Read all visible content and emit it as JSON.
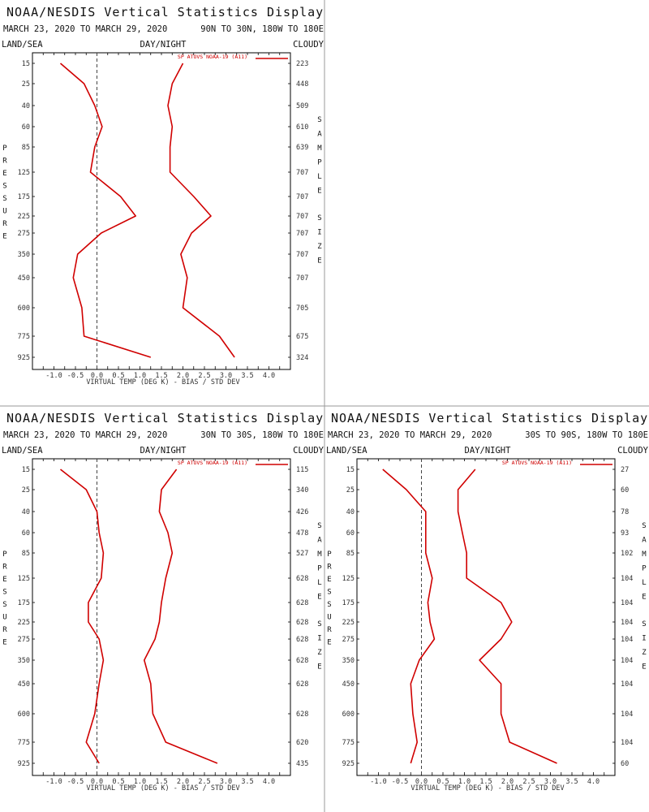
{
  "page": {
    "divider_color": "#999999"
  },
  "colors": {
    "series": "#d00000",
    "frame": "#000000",
    "zero_line": "#444444"
  },
  "chart_data": [
    {
      "type": "line",
      "title": "NOAA/NESDIS Vertical Statistics Display",
      "date_range": "MARCH 23, 2020 TO MARCH 29, 2020",
      "region": "90N TO 30N, 180W TO 180E",
      "land_sea": "LAND/SEA",
      "day_night": "DAY/NIGHT",
      "cloudy": "CLOUDY",
      "xlabel": "VIRTUAL TEMP (DEG K) - BIAS / STD DEV",
      "ylabel_left": "PRESSURE",
      "ylabel_right": "SAMPLE SIZE",
      "xlim": [
        -1.5,
        4.5
      ],
      "xticks": [
        "-1.0",
        "-0.5",
        "0.0",
        "0.5",
        "1.0",
        "1.5",
        "2.0",
        "2.5",
        "3.0",
        "3.5",
        "4.0"
      ],
      "pressure_levels": [
        15,
        25,
        40,
        60,
        85,
        125,
        175,
        225,
        275,
        350,
        450,
        600,
        775,
        925
      ],
      "sample_size": [
        223,
        448,
        509,
        610,
        639,
        707,
        707,
        707,
        707,
        707,
        707,
        705,
        675,
        324
      ],
      "series": [
        {
          "name": "SP ATOVS NOAA-19 (A11)",
          "kind": "bias",
          "values": [
            -0.85,
            -0.3,
            -0.05,
            0.12,
            -0.05,
            -0.15,
            0.55,
            0.9,
            0.1,
            -0.45,
            -0.55,
            -0.35,
            -0.3,
            1.25
          ]
        },
        {
          "name": "",
          "kind": "std_dev",
          "values": [
            2.0,
            1.75,
            1.65,
            1.75,
            1.7,
            1.7,
            2.25,
            2.65,
            2.2,
            1.95,
            2.1,
            2.0,
            2.85,
            3.2
          ]
        }
      ],
      "legend": "SP ATOVS NOAA-19 (A11)"
    },
    {
      "type": "line",
      "title": "NOAA/NESDIS Vertical Statistics Display",
      "date_range": "MARCH 23, 2020 TO MARCH 29, 2020",
      "region": "30N TO 30S, 180W TO 180E",
      "land_sea": "LAND/SEA",
      "day_night": "DAY/NIGHT",
      "cloudy": "CLOUDY",
      "xlabel": "VIRTUAL TEMP (DEG K) - BIAS / STD DEV",
      "ylabel_left": "PRESSURE",
      "ylabel_right": "SAMPLE SIZE",
      "xlim": [
        -1.5,
        4.5
      ],
      "xticks": [
        "-1.0",
        "-0.5",
        "0.0",
        "0.5",
        "1.0",
        "1.5",
        "2.0",
        "2.5",
        "3.0",
        "3.5",
        "4.0"
      ],
      "pressure_levels": [
        15,
        25,
        40,
        60,
        85,
        125,
        175,
        225,
        275,
        350,
        450,
        600,
        775,
        925
      ],
      "sample_size": [
        115,
        340,
        426,
        478,
        527,
        628,
        628,
        628,
        628,
        628,
        628,
        628,
        620,
        435
      ],
      "series": [
        {
          "name": "SP ATOVS NOAA-19 (A11)",
          "kind": "bias",
          "values": [
            -0.85,
            -0.25,
            0.0,
            0.05,
            0.15,
            0.1,
            -0.2,
            -0.2,
            0.05,
            0.15,
            0.05,
            -0.05,
            -0.25,
            0.05
          ]
        },
        {
          "name": "",
          "kind": "std_dev",
          "values": [
            1.85,
            1.5,
            1.45,
            1.65,
            1.75,
            1.6,
            1.5,
            1.45,
            1.35,
            1.1,
            1.25,
            1.3,
            1.6,
            2.8
          ]
        }
      ],
      "legend": "SP ATOVS NOAA-19 (A11)"
    },
    {
      "type": "line",
      "title": "NOAA/NESDIS Vertical Statistics Display",
      "date_range": "MARCH 23, 2020 TO MARCH 29, 2020",
      "region": "30S TO 90S, 180W TO 180E",
      "land_sea": "LAND/SEA",
      "day_night": "DAY/NIGHT",
      "cloudy": "CLOUDY",
      "xlabel": "VIRTUAL TEMP (DEG K) - BIAS / STD DEV",
      "ylabel_left": "PRESSURE",
      "ylabel_right": "SAMPLE SIZE",
      "xlim": [
        -1.5,
        4.5
      ],
      "xticks": [
        "-1.0",
        "-0.5",
        "0.0",
        "0.5",
        "1.0",
        "1.5",
        "2.0",
        "2.5",
        "3.0",
        "3.5",
        "4.0"
      ],
      "pressure_levels": [
        15,
        25,
        40,
        60,
        85,
        125,
        175,
        225,
        275,
        350,
        450,
        600,
        775,
        925
      ],
      "sample_size": [
        27,
        60,
        78,
        93,
        102,
        104,
        104,
        104,
        104,
        104,
        104,
        104,
        104,
        60
      ],
      "series": [
        {
          "name": "SP ATOVS NOAA-19 (A11)",
          "kind": "bias",
          "values": [
            -0.9,
            -0.35,
            0.1,
            0.1,
            0.1,
            0.25,
            0.15,
            0.2,
            0.3,
            -0.05,
            -0.25,
            -0.2,
            -0.1,
            -0.25
          ]
        },
        {
          "name": "",
          "kind": "std_dev",
          "values": [
            1.25,
            0.85,
            0.85,
            0.95,
            1.05,
            1.05,
            1.85,
            2.1,
            1.85,
            1.35,
            1.85,
            1.85,
            2.05,
            3.15
          ]
        }
      ],
      "legend": "SP ATOVS NOAA-19 (A11)"
    }
  ]
}
